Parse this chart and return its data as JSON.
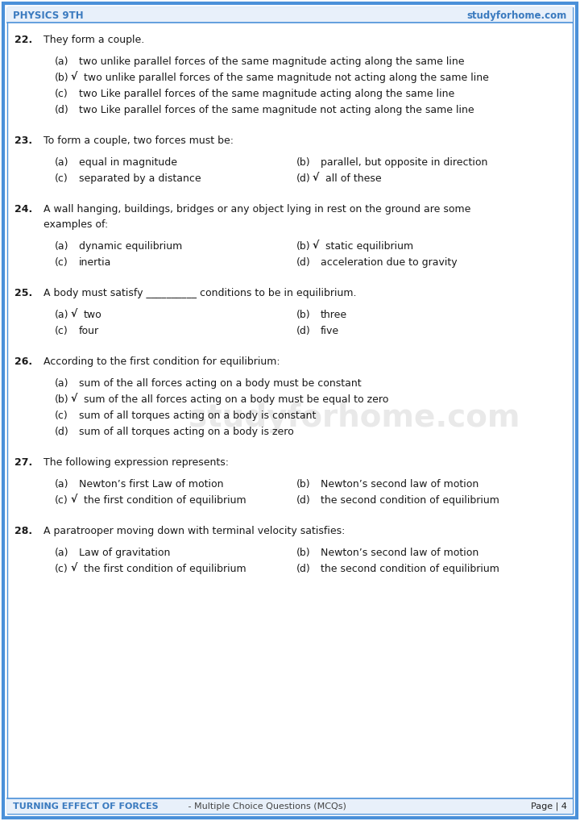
{
  "header_left": "PHYSICS 9TH",
  "header_right": "studyforhome.com",
  "footer_left": "TURNING EFFECT OF FORCES",
  "footer_middle": " - Multiple Choice Questions (MCQs)",
  "footer_right": "Page | 4",
  "header_color": "#3a7abf",
  "border_color": "#4a90d9",
  "bg_color": "#ffffff",
  "text_color": "#1a1a1a",
  "questions": [
    {
      "num": "22.",
      "question": "They form a couple.",
      "type": "single_col",
      "options": [
        {
          "label": "(a)",
          "text": "two unlike parallel forces of the same magnitude acting along the same line",
          "correct": false
        },
        {
          "label": "(b)",
          "text": "two unlike parallel forces of the same magnitude not acting along the same line",
          "correct": true
        },
        {
          "label": "(c)",
          "text": "two Like parallel forces of the same magnitude acting along the same line",
          "correct": false
        },
        {
          "label": "(d)",
          "text": "two Like parallel forces of the same magnitude not acting along the same line",
          "correct": false
        }
      ]
    },
    {
      "num": "23.",
      "question": "To form a couple, two forces must be:",
      "type": "two_col",
      "options": [
        {
          "label": "(a)",
          "text": "equal in magnitude",
          "correct": false,
          "col": 0
        },
        {
          "label": "(b)",
          "text": "parallel, but opposite in direction",
          "correct": false,
          "col": 1
        },
        {
          "label": "(c)",
          "text": "separated by a distance",
          "correct": false,
          "col": 0
        },
        {
          "label": "(d)",
          "text": "all of these",
          "correct": true,
          "col": 1
        }
      ]
    },
    {
      "num": "24.",
      "question": "A wall hanging, buildings, bridges or any object lying in rest on the ground are some\nexamples of:",
      "type": "two_col",
      "options": [
        {
          "label": "(a)",
          "text": "dynamic equilibrium",
          "correct": false,
          "col": 0
        },
        {
          "label": "(b)",
          "text": "static equilibrium",
          "correct": true,
          "col": 1
        },
        {
          "label": "(c)",
          "text": "inertia",
          "correct": false,
          "col": 0
        },
        {
          "label": "(d)",
          "text": "acceleration due to gravity",
          "correct": false,
          "col": 1
        }
      ]
    },
    {
      "num": "25.",
      "question": "A body must satisfy __________ conditions to be in equilibrium.",
      "type": "two_col",
      "options": [
        {
          "label": "(a)",
          "text": "two",
          "correct": true,
          "col": 0
        },
        {
          "label": "(b)",
          "text": "three",
          "correct": false,
          "col": 1
        },
        {
          "label": "(c)",
          "text": "four",
          "correct": false,
          "col": 0
        },
        {
          "label": "(d)",
          "text": "five",
          "correct": false,
          "col": 1
        }
      ]
    },
    {
      "num": "26.",
      "question": "According to the first condition for equilibrium:",
      "type": "single_col",
      "options": [
        {
          "label": "(a)",
          "text": "sum of the all forces acting on a body must be constant",
          "correct": false
        },
        {
          "label": "(b)",
          "text": "sum of the all forces acting on a body must be equal to zero",
          "correct": true
        },
        {
          "label": "(c)",
          "text": "sum of all torques acting on a body is constant",
          "correct": false
        },
        {
          "label": "(d)",
          "text": "sum of all torques acting on a body is zero",
          "correct": false
        }
      ]
    },
    {
      "num": "27.",
      "question": "The following expression represents:",
      "type": "two_col",
      "options": [
        {
          "label": "(a)",
          "text": "Newton’s first Law of motion",
          "correct": false,
          "col": 0
        },
        {
          "label": "(b)",
          "text": "Newton’s second law of motion",
          "correct": false,
          "col": 1
        },
        {
          "label": "(c)",
          "text": "the first condition of equilibrium",
          "correct": true,
          "col": 0
        },
        {
          "label": "(d)",
          "text": "the second condition of equilibrium",
          "correct": false,
          "col": 1
        }
      ]
    },
    {
      "num": "28.",
      "question": "A paratrooper moving down with terminal velocity satisfies:",
      "type": "two_col",
      "options": [
        {
          "label": "(a)",
          "text": "Law of gravitation",
          "correct": false,
          "col": 0
        },
        {
          "label": "(b)",
          "text": "Newton’s second law of motion",
          "correct": false,
          "col": 1
        },
        {
          "label": "(c)",
          "text": "the first condition of equilibrium",
          "correct": true,
          "col": 0
        },
        {
          "label": "(d)",
          "text": "the second condition of equilibrium",
          "correct": false,
          "col": 1
        }
      ]
    }
  ]
}
